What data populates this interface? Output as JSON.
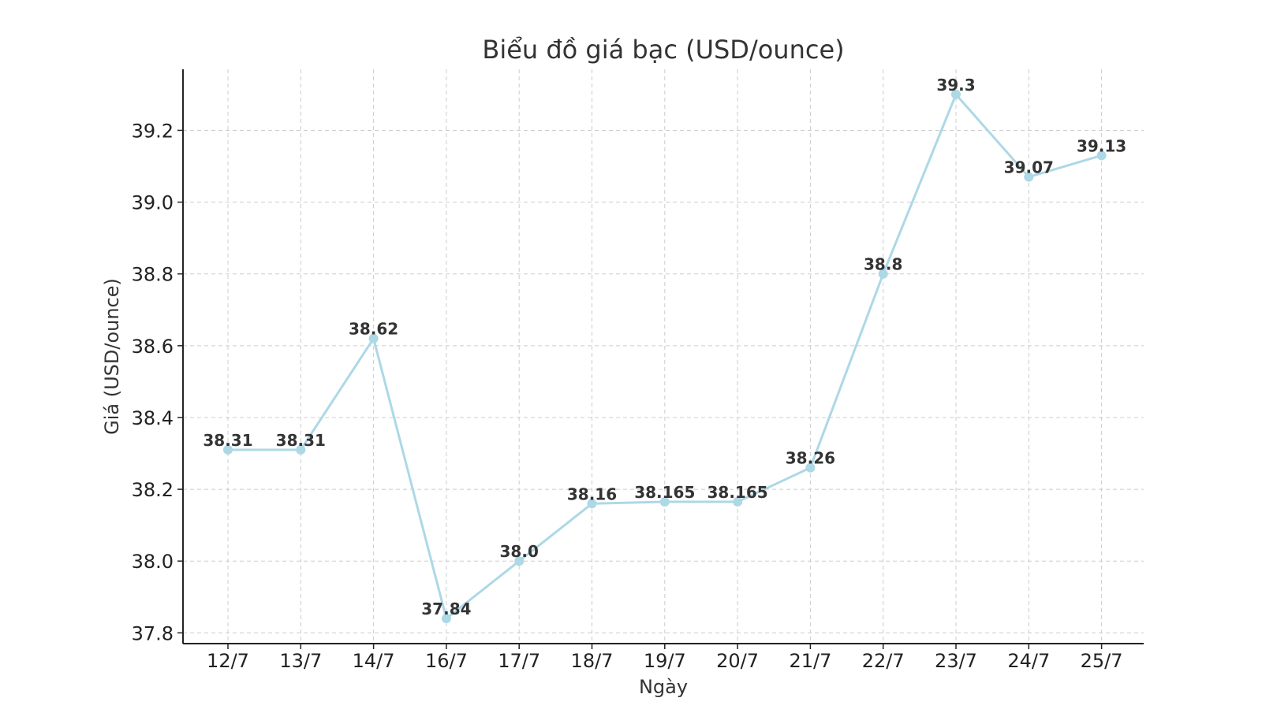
{
  "chart_data": {
    "type": "line",
    "title": "Biểu đồ giá bạc (USD/ounce)",
    "xlabel": "Ngày",
    "ylabel": "Giá (USD/ounce)",
    "categories": [
      "12/7",
      "13/7",
      "14/7",
      "16/7",
      "17/7",
      "18/7",
      "19/7",
      "20/7",
      "21/7",
      "22/7",
      "23/7",
      "24/7",
      "25/7"
    ],
    "series": [
      {
        "values": [
          38.31,
          38.31,
          38.62,
          37.84,
          38.0,
          38.16,
          38.165,
          38.165,
          38.26,
          38.8,
          39.3,
          39.07,
          39.13
        ],
        "data_labels": [
          "38.31",
          "38.31",
          "38.62",
          "37.84",
          "38.0",
          "38.16",
          "38.165",
          "38.165",
          "38.26",
          "38.8",
          "39.3",
          "39.07",
          "39.13"
        ],
        "color": "#ADD8E6"
      }
    ],
    "yticks": [
      37.8,
      38.0,
      38.2,
      38.4,
      38.6,
      38.8,
      39.0,
      39.2
    ],
    "ytick_labels": [
      "37.8",
      "38.0",
      "38.2",
      "38.4",
      "38.6",
      "38.8",
      "39.0",
      "39.2"
    ],
    "ylim": [
      37.77,
      39.37
    ],
    "grid": true,
    "grid_style": "dashed",
    "legend": false
  }
}
